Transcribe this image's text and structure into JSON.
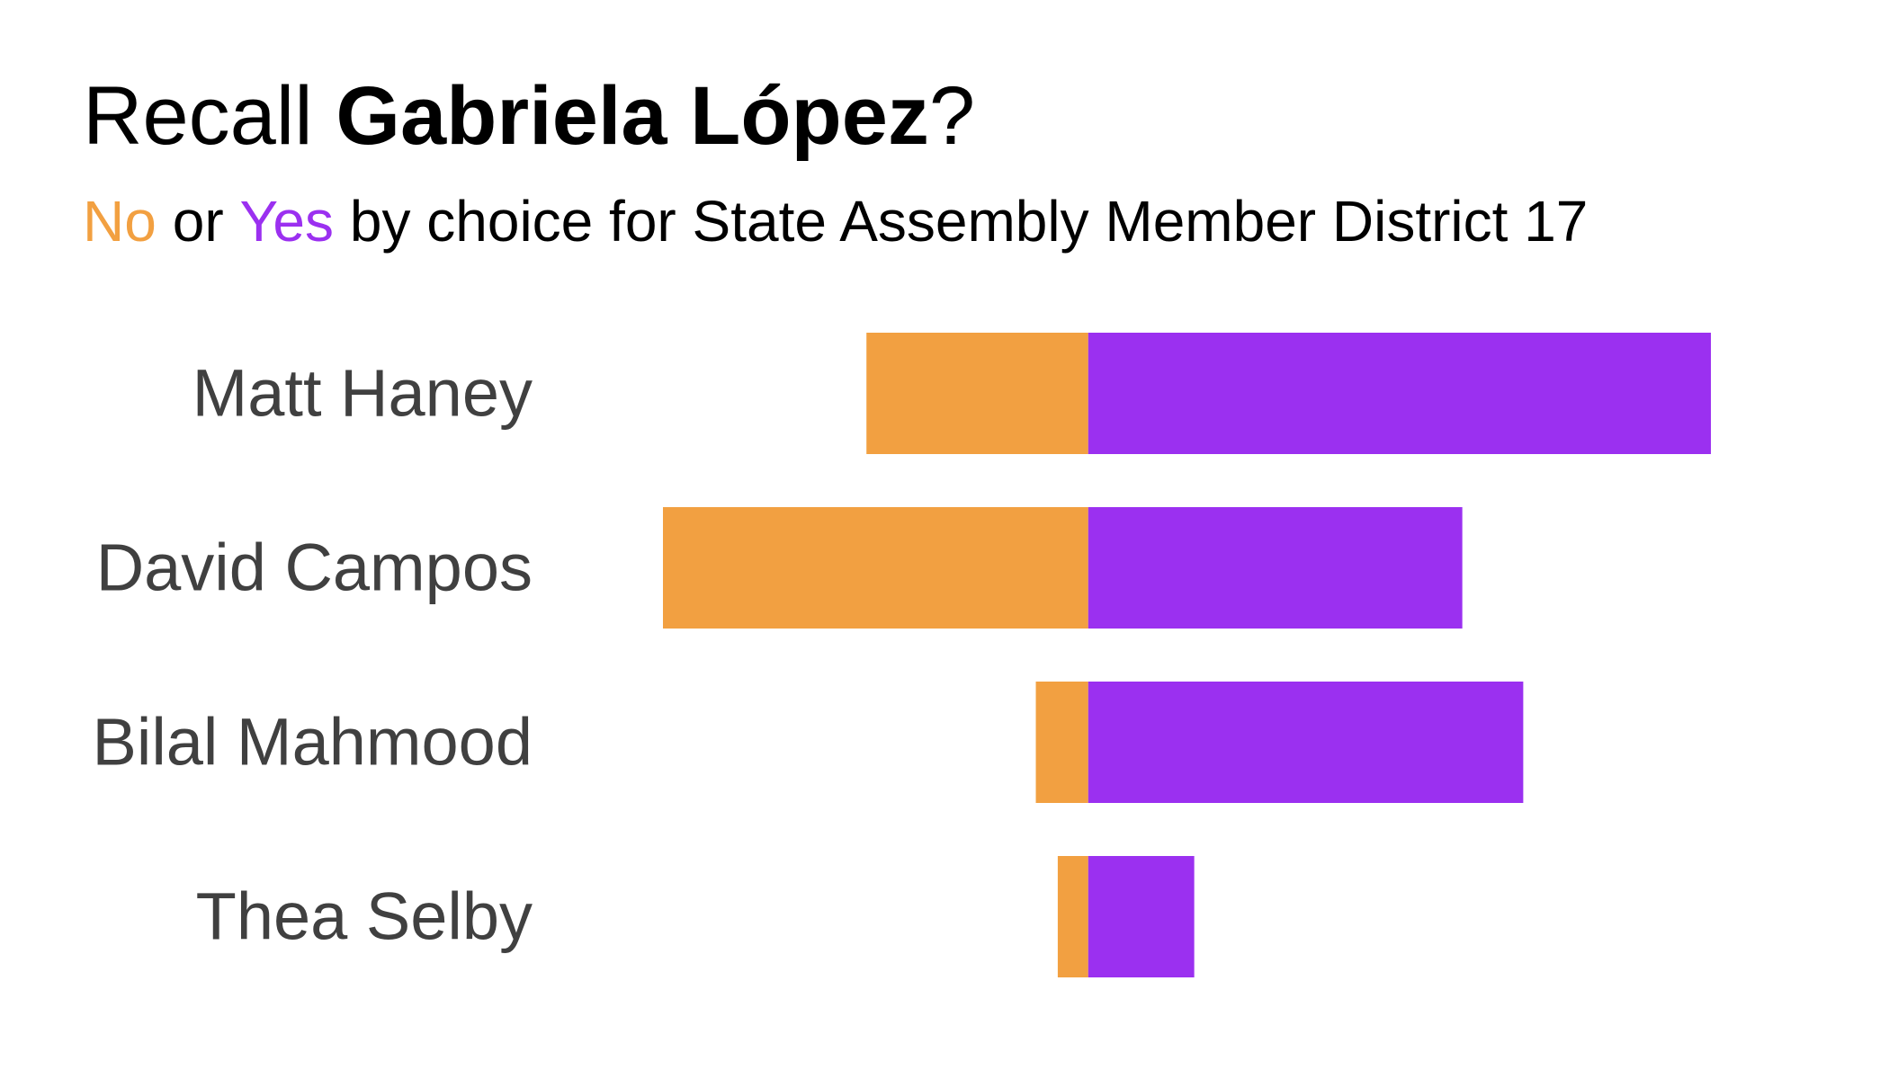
{
  "chart_data": {
    "type": "diverging_bar",
    "title": [
      "Recall",
      "Gabriela López",
      "?"
    ],
    "subtitle": [
      "or",
      "by choice for State Assembly Member District 17"
    ],
    "categories": [
      "Matt Haney",
      "David Campos",
      "Bilal Mahmood",
      "Thea Selby"
    ],
    "series": [
      {
        "name": "No",
        "color": "#f2a041",
        "values": [
          182,
          349,
          43,
          25
        ]
      },
      {
        "name": "Yes",
        "color": "#9b30f0",
        "values": [
          511,
          307,
          357,
          87
        ]
      }
    ],
    "xlim": [
      -349,
      511
    ]
  }
}
